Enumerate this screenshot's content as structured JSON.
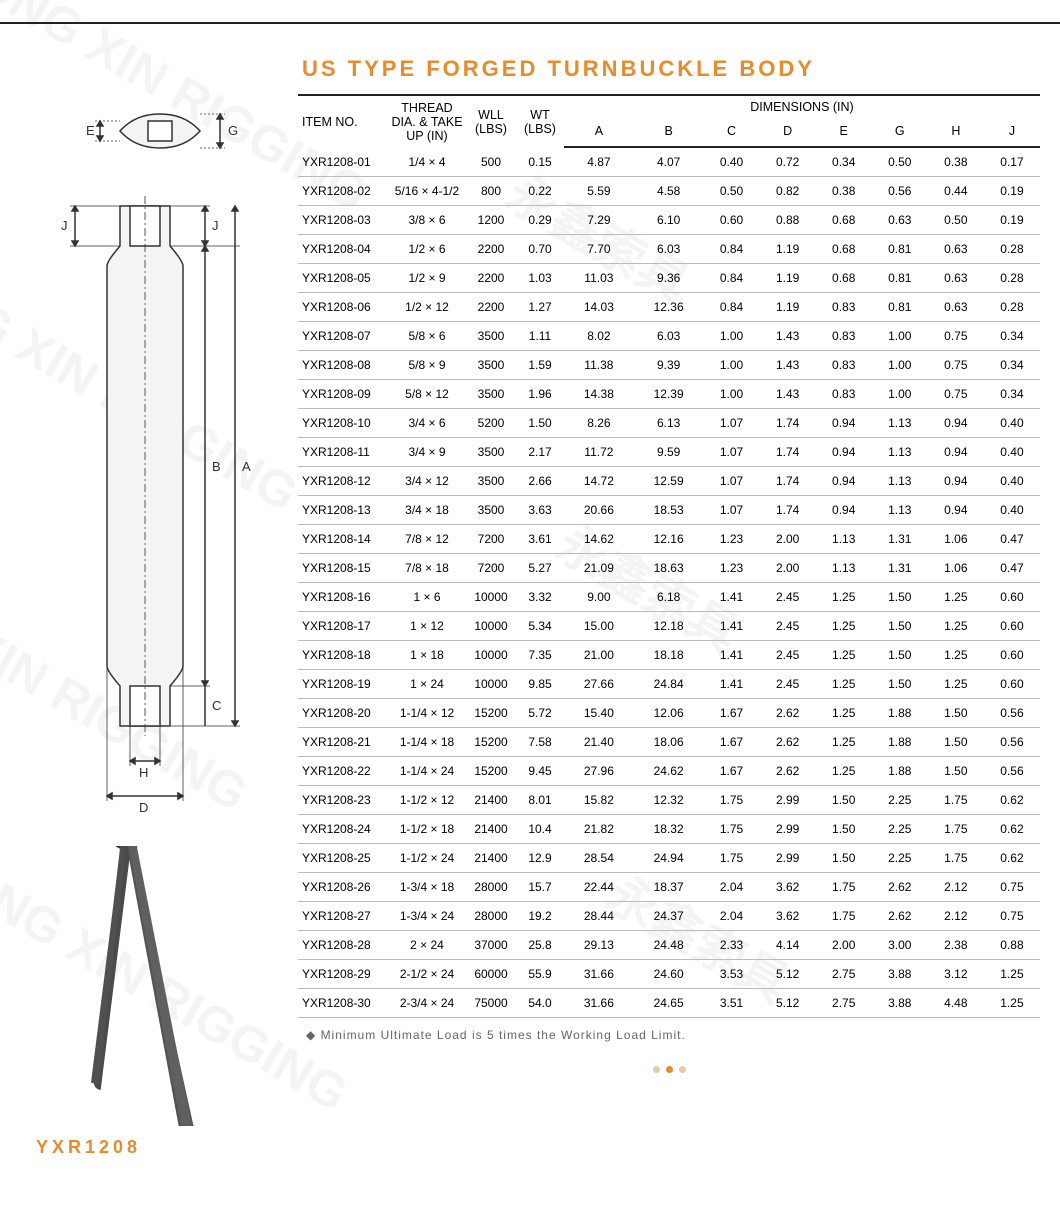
{
  "title": "US TYPE FORGED TURNBUCKLE BODY",
  "product_code": "YXR1208",
  "footnote": "Minimum Ultimate Load is 5 times the Working Load Limit.",
  "colors": {
    "accent": "#e98b2b",
    "rule": "#222222",
    "row_border": "#bbbbbb",
    "footnote": "#666666"
  },
  "diagram_labels": {
    "E": "E",
    "G": "G",
    "J": "J",
    "A": "A",
    "B": "B",
    "C": "C",
    "H": "H",
    "D": "D"
  },
  "headers": {
    "item": "ITEM NO.",
    "thread": "THREAD DIA. & TAKE UP (IN)",
    "wll": "WLL (LBS)",
    "wt": "WT (LBS)",
    "dim_group": "DIMENSIONS (IN)",
    "dims": [
      "A",
      "B",
      "C",
      "D",
      "E",
      "G",
      "H",
      "J"
    ]
  },
  "rows": [
    {
      "item": "YXR1208-01",
      "thread": "1/4 × 4",
      "wll": "500",
      "wt": "0.15",
      "d": [
        "4.87",
        "4.07",
        "0.40",
        "0.72",
        "0.34",
        "0.50",
        "0.38",
        "0.17"
      ]
    },
    {
      "item": "YXR1208-02",
      "thread": "5/16 × 4-1/2",
      "wll": "800",
      "wt": "0.22",
      "d": [
        "5.59",
        "4.58",
        "0.50",
        "0.82",
        "0.38",
        "0.56",
        "0.44",
        "0.19"
      ]
    },
    {
      "item": "YXR1208-03",
      "thread": "3/8 × 6",
      "wll": "1200",
      "wt": "0.29",
      "d": [
        "7.29",
        "6.10",
        "0.60",
        "0.88",
        "0.68",
        "0.63",
        "0.50",
        "0.19"
      ]
    },
    {
      "item": "YXR1208-04",
      "thread": "1/2 × 6",
      "wll": "2200",
      "wt": "0.70",
      "d": [
        "7.70",
        "6.03",
        "0.84",
        "1.19",
        "0.68",
        "0.81",
        "0.63",
        "0.28"
      ]
    },
    {
      "item": "YXR1208-05",
      "thread": "1/2 × 9",
      "wll": "2200",
      "wt": "1.03",
      "d": [
        "11.03",
        "9.36",
        "0.84",
        "1.19",
        "0.68",
        "0.81",
        "0.63",
        "0.28"
      ]
    },
    {
      "item": "YXR1208-06",
      "thread": "1/2 × 12",
      "wll": "2200",
      "wt": "1.27",
      "d": [
        "14.03",
        "12.36",
        "0.84",
        "1.19",
        "0.83",
        "0.81",
        "0.63",
        "0.28"
      ]
    },
    {
      "item": "YXR1208-07",
      "thread": "5/8 × 6",
      "wll": "3500",
      "wt": "1.11",
      "d": [
        "8.02",
        "6.03",
        "1.00",
        "1.43",
        "0.83",
        "1.00",
        "0.75",
        "0.34"
      ]
    },
    {
      "item": "YXR1208-08",
      "thread": "5/8 × 9",
      "wll": "3500",
      "wt": "1.59",
      "d": [
        "11.38",
        "9.39",
        "1.00",
        "1.43",
        "0.83",
        "1.00",
        "0.75",
        "0.34"
      ]
    },
    {
      "item": "YXR1208-09",
      "thread": "5/8 × 12",
      "wll": "3500",
      "wt": "1.96",
      "d": [
        "14.38",
        "12.39",
        "1.00",
        "1.43",
        "0.83",
        "1.00",
        "0.75",
        "0.34"
      ]
    },
    {
      "item": "YXR1208-10",
      "thread": "3/4 × 6",
      "wll": "5200",
      "wt": "1.50",
      "d": [
        "8.26",
        "6.13",
        "1.07",
        "1.74",
        "0.94",
        "1.13",
        "0.94",
        "0.40"
      ]
    },
    {
      "item": "YXR1208-11",
      "thread": "3/4 × 9",
      "wll": "3500",
      "wt": "2.17",
      "d": [
        "11.72",
        "9.59",
        "1.07",
        "1.74",
        "0.94",
        "1.13",
        "0.94",
        "0.40"
      ]
    },
    {
      "item": "YXR1208-12",
      "thread": "3/4 × 12",
      "wll": "3500",
      "wt": "2.66",
      "d": [
        "14.72",
        "12.59",
        "1.07",
        "1.74",
        "0.94",
        "1.13",
        "0.94",
        "0.40"
      ]
    },
    {
      "item": "YXR1208-13",
      "thread": "3/4 × 18",
      "wll": "3500",
      "wt": "3.63",
      "d": [
        "20.66",
        "18.53",
        "1.07",
        "1.74",
        "0.94",
        "1.13",
        "0.94",
        "0.40"
      ]
    },
    {
      "item": "YXR1208-14",
      "thread": "7/8 × 12",
      "wll": "7200",
      "wt": "3.61",
      "d": [
        "14.62",
        "12.16",
        "1.23",
        "2.00",
        "1.13",
        "1.31",
        "1.06",
        "0.47"
      ]
    },
    {
      "item": "YXR1208-15",
      "thread": "7/8 × 18",
      "wll": "7200",
      "wt": "5.27",
      "d": [
        "21.09",
        "18.63",
        "1.23",
        "2.00",
        "1.13",
        "1.31",
        "1.06",
        "0.47"
      ]
    },
    {
      "item": "YXR1208-16",
      "thread": "1 × 6",
      "wll": "10000",
      "wt": "3.32",
      "d": [
        "9.00",
        "6.18",
        "1.41",
        "2.45",
        "1.25",
        "1.50",
        "1.25",
        "0.60"
      ]
    },
    {
      "item": "YXR1208-17",
      "thread": "1 × 12",
      "wll": "10000",
      "wt": "5.34",
      "d": [
        "15.00",
        "12.18",
        "1.41",
        "2.45",
        "1.25",
        "1.50",
        "1.25",
        "0.60"
      ]
    },
    {
      "item": "YXR1208-18",
      "thread": "1 × 18",
      "wll": "10000",
      "wt": "7.35",
      "d": [
        "21.00",
        "18.18",
        "1.41",
        "2.45",
        "1.25",
        "1.50",
        "1.25",
        "0.60"
      ]
    },
    {
      "item": "YXR1208-19",
      "thread": "1 × 24",
      "wll": "10000",
      "wt": "9.85",
      "d": [
        "27.66",
        "24.84",
        "1.41",
        "2.45",
        "1.25",
        "1.50",
        "1.25",
        "0.60"
      ]
    },
    {
      "item": "YXR1208-20",
      "thread": "1-1/4 × 12",
      "wll": "15200",
      "wt": "5.72",
      "d": [
        "15.40",
        "12.06",
        "1.67",
        "2.62",
        "1.25",
        "1.88",
        "1.50",
        "0.56"
      ]
    },
    {
      "item": "YXR1208-21",
      "thread": "1-1/4 × 18",
      "wll": "15200",
      "wt": "7.58",
      "d": [
        "21.40",
        "18.06",
        "1.67",
        "2.62",
        "1.25",
        "1.88",
        "1.50",
        "0.56"
      ]
    },
    {
      "item": "YXR1208-22",
      "thread": "1-1/4 × 24",
      "wll": "15200",
      "wt": "9.45",
      "d": [
        "27.96",
        "24.62",
        "1.67",
        "2.62",
        "1.25",
        "1.88",
        "1.50",
        "0.56"
      ]
    },
    {
      "item": "YXR1208-23",
      "thread": "1-1/2 × 12",
      "wll": "21400",
      "wt": "8.01",
      "d": [
        "15.82",
        "12.32",
        "1.75",
        "2.99",
        "1.50",
        "2.25",
        "1.75",
        "0.62"
      ]
    },
    {
      "item": "YXR1208-24",
      "thread": "1-1/2 × 18",
      "wll": "21400",
      "wt": "10.4",
      "d": [
        "21.82",
        "18.32",
        "1.75",
        "2.99",
        "1.50",
        "2.25",
        "1.75",
        "0.62"
      ]
    },
    {
      "item": "YXR1208-25",
      "thread": "1-1/2 × 24",
      "wll": "21400",
      "wt": "12.9",
      "d": [
        "28.54",
        "24.94",
        "1.75",
        "2.99",
        "1.50",
        "2.25",
        "1.75",
        "0.62"
      ]
    },
    {
      "item": "YXR1208-26",
      "thread": "1-3/4 × 18",
      "wll": "28000",
      "wt": "15.7",
      "d": [
        "22.44",
        "18.37",
        "2.04",
        "3.62",
        "1.75",
        "2.62",
        "2.12",
        "0.75"
      ]
    },
    {
      "item": "YXR1208-27",
      "thread": "1-3/4 × 24",
      "wll": "28000",
      "wt": "19.2",
      "d": [
        "28.44",
        "24.37",
        "2.04",
        "3.62",
        "1.75",
        "2.62",
        "2.12",
        "0.75"
      ]
    },
    {
      "item": "YXR1208-28",
      "thread": "2 × 24",
      "wll": "37000",
      "wt": "25.8",
      "d": [
        "29.13",
        "24.48",
        "2.33",
        "4.14",
        "2.00",
        "3.00",
        "2.38",
        "0.88"
      ]
    },
    {
      "item": "YXR1208-29",
      "thread": "2-1/2 × 24",
      "wll": "60000",
      "wt": "55.9",
      "d": [
        "31.66",
        "24.60",
        "3.53",
        "5.12",
        "2.75",
        "3.88",
        "3.12",
        "1.25"
      ]
    },
    {
      "item": "YXR1208-30",
      "thread": "2-3/4 × 24",
      "wll": "75000",
      "wt": "54.0",
      "d": [
        "31.66",
        "24.65",
        "3.51",
        "5.12",
        "2.75",
        "3.88",
        "4.48",
        "1.25"
      ]
    }
  ],
  "pager": {
    "count": 3,
    "active": 1
  }
}
